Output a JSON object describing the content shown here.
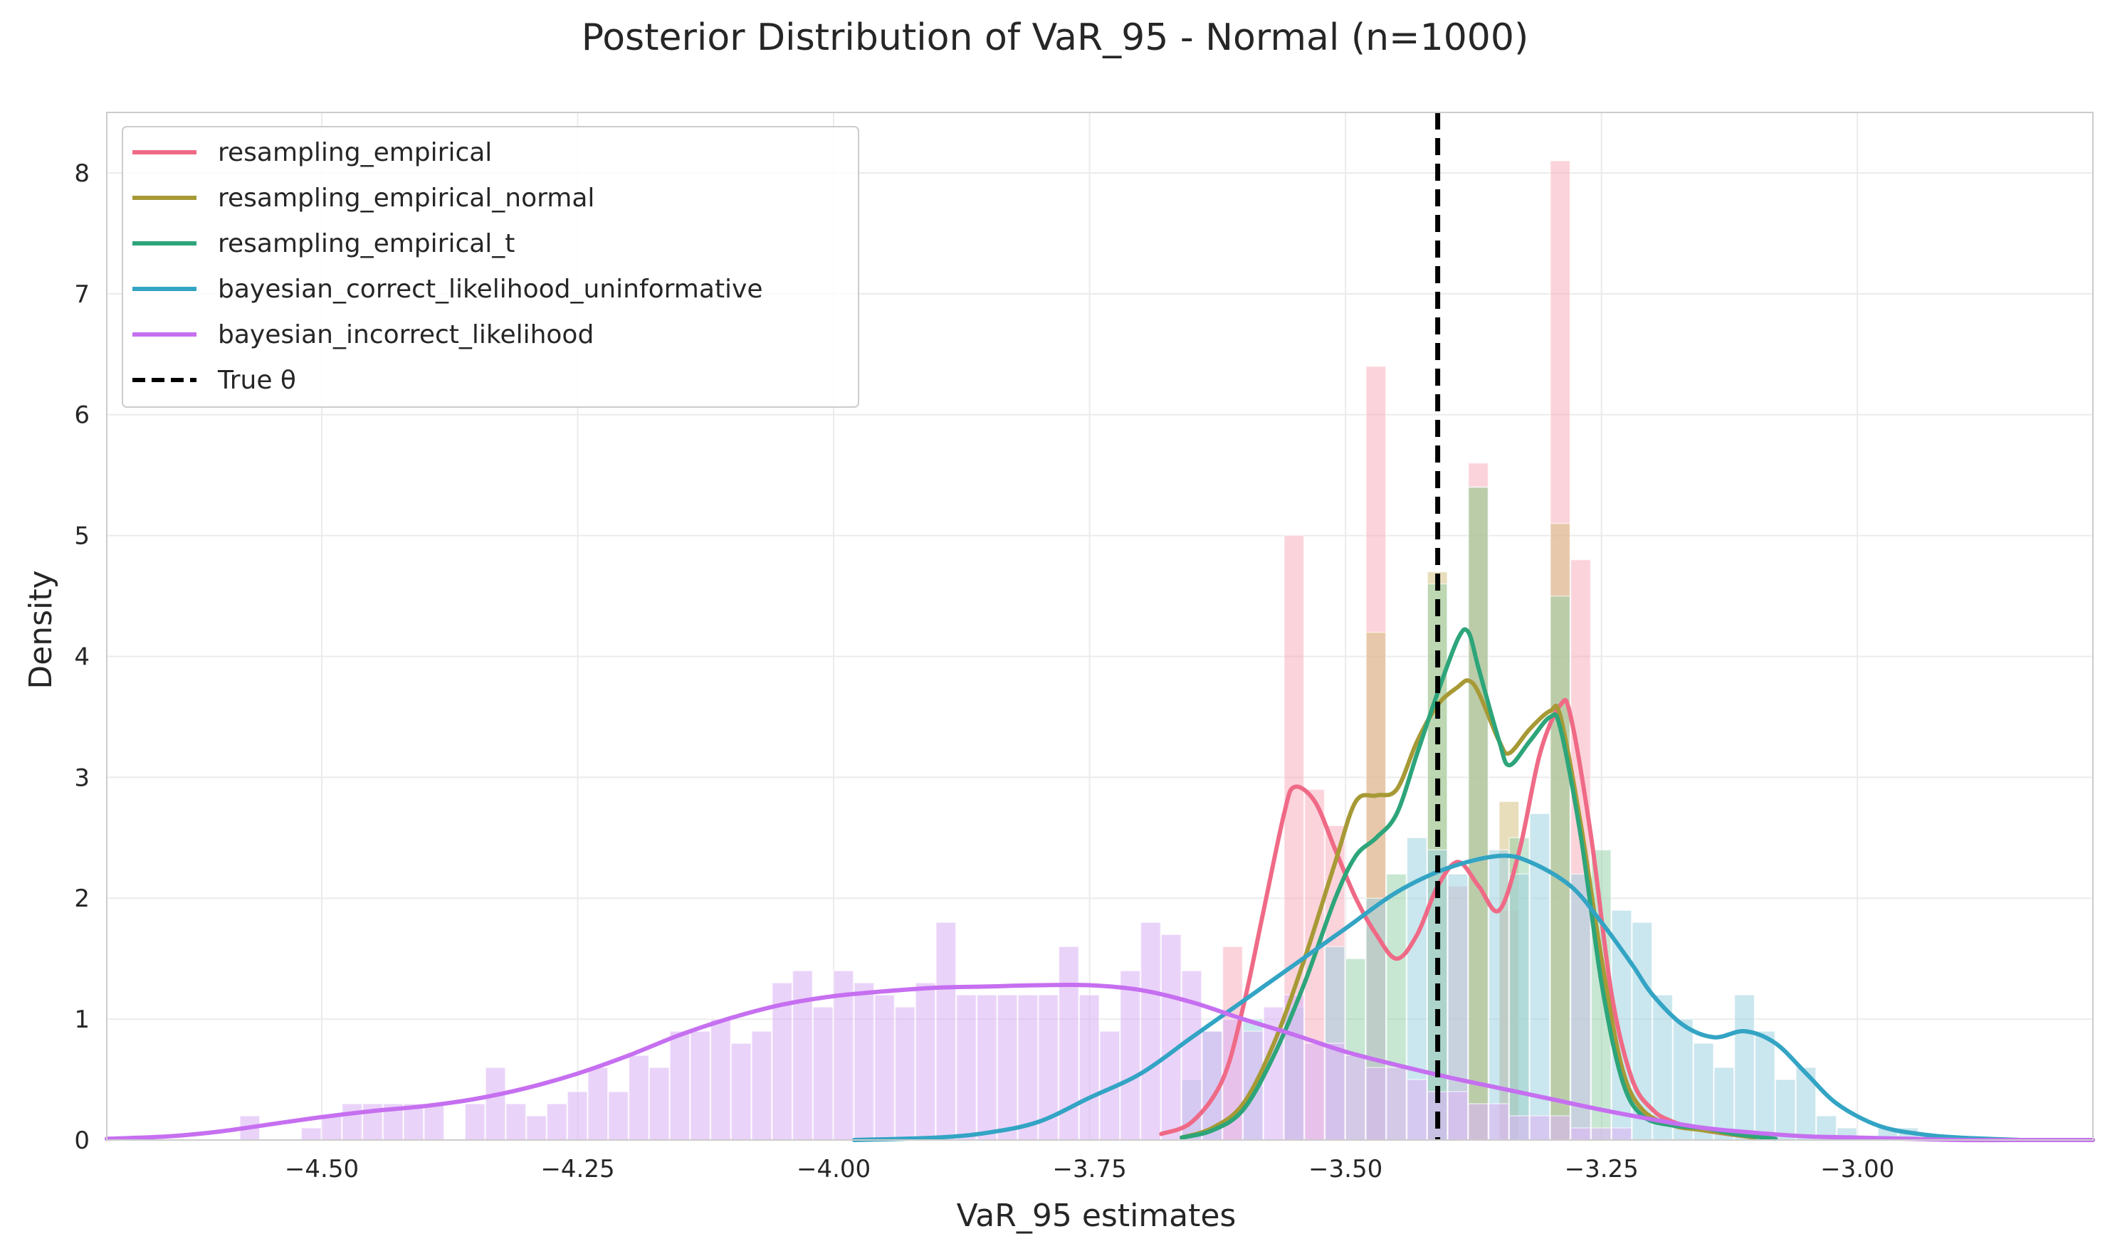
{
  "chart_data": {
    "type": "area",
    "title": "Posterior Distribution of VaR_95 - Normal (n=1000)",
    "xlabel": "VaR_95 estimates",
    "ylabel": "Density",
    "xlim": [
      -4.71,
      -2.77
    ],
    "ylim": [
      0,
      8.5
    ],
    "xticks": [
      -4.5,
      -4.25,
      -4.0,
      -3.75,
      -3.5,
      -3.25,
      -3.0
    ],
    "xtick_labels": [
      "−4.50",
      "−4.25",
      "−4.00",
      "−3.75",
      "−3.50",
      "−3.25",
      "−3.00"
    ],
    "yticks": [
      0,
      1,
      2,
      3,
      4,
      5,
      6,
      7,
      8
    ],
    "ytick_labels": [
      "0",
      "1",
      "2",
      "3",
      "4",
      "5",
      "6",
      "7",
      "8"
    ],
    "grid": true,
    "legend_position": "top-left",
    "true_theta": -3.41,
    "true_theta_label": "True θ",
    "histograms": [
      {
        "name": "resampling_empirical",
        "color": "#f7a8b8",
        "opacity": 0.5,
        "bars": [
          [
            -3.62,
            -3.6,
            1.6
          ],
          [
            -3.56,
            -3.54,
            5.0
          ],
          [
            -3.54,
            -3.52,
            2.9
          ],
          [
            -3.52,
            -3.5,
            2.6
          ],
          [
            -3.48,
            -3.46,
            6.4
          ],
          [
            -3.4,
            -3.38,
            2.1
          ],
          [
            -3.38,
            -3.36,
            5.6
          ],
          [
            -3.35,
            -3.33,
            1.9
          ],
          [
            -3.3,
            -3.28,
            8.1
          ],
          [
            -3.28,
            -3.26,
            4.8
          ]
        ]
      },
      {
        "name": "resampling_empirical_normal",
        "color": "#d4be7a",
        "opacity": 0.5,
        "bars": [
          [
            -3.48,
            -3.46,
            4.2
          ],
          [
            -3.42,
            -3.4,
            4.7
          ],
          [
            -3.38,
            -3.36,
            5.4
          ],
          [
            -3.35,
            -3.33,
            2.8
          ],
          [
            -3.3,
            -3.28,
            5.1
          ]
        ]
      },
      {
        "name": "resampling_empirical_t",
        "color": "#8fd0a8",
        "opacity": 0.5,
        "bars": [
          [
            -3.5,
            -3.48,
            1.5
          ],
          [
            -3.46,
            -3.44,
            2.2
          ],
          [
            -3.42,
            -3.4,
            4.6
          ],
          [
            -3.38,
            -3.36,
            5.4
          ],
          [
            -3.34,
            -3.32,
            2.5
          ],
          [
            -3.3,
            -3.28,
            4.5
          ],
          [
            -3.26,
            -3.24,
            2.4
          ]
        ]
      },
      {
        "name": "bayesian_correct_likelihood_uninformative",
        "color": "#9fd2e0",
        "opacity": 0.55,
        "bars": [
          [
            -3.66,
            -3.64,
            0.5
          ],
          [
            -3.64,
            -3.62,
            0.9
          ],
          [
            -3.6,
            -3.58,
            1.0
          ],
          [
            -3.56,
            -3.54,
            1.1
          ],
          [
            -3.52,
            -3.5,
            1.6
          ],
          [
            -3.48,
            -3.46,
            2.0
          ],
          [
            -3.44,
            -3.42,
            2.5
          ],
          [
            -3.42,
            -3.4,
            2.4
          ],
          [
            -3.4,
            -3.38,
            2.2
          ],
          [
            -3.36,
            -3.34,
            2.4
          ],
          [
            -3.34,
            -3.32,
            2.2
          ],
          [
            -3.32,
            -3.3,
            2.7
          ],
          [
            -3.28,
            -3.26,
            2.2
          ],
          [
            -3.24,
            -3.22,
            1.9
          ],
          [
            -3.22,
            -3.2,
            1.8
          ],
          [
            -3.2,
            -3.18,
            1.2
          ],
          [
            -3.18,
            -3.16,
            1.0
          ],
          [
            -3.16,
            -3.14,
            0.8
          ],
          [
            -3.14,
            -3.12,
            0.6
          ],
          [
            -3.12,
            -3.1,
            1.2
          ],
          [
            -3.1,
            -3.08,
            0.9
          ],
          [
            -3.08,
            -3.06,
            0.5
          ],
          [
            -3.06,
            -3.04,
            0.6
          ],
          [
            -3.04,
            -3.02,
            0.2
          ],
          [
            -3.02,
            -3.0,
            0.1
          ],
          [
            -2.98,
            -2.96,
            0.1
          ],
          [
            -2.96,
            -2.94,
            0.1
          ]
        ]
      },
      {
        "name": "bayesian_incorrect_likelihood",
        "color": "#dcb6f5",
        "opacity": 0.6,
        "bars": [
          [
            -4.58,
            -4.56,
            0.2
          ],
          [
            -4.52,
            -4.5,
            0.1
          ],
          [
            -4.5,
            -4.48,
            0.2
          ],
          [
            -4.48,
            -4.46,
            0.3
          ],
          [
            -4.46,
            -4.44,
            0.3
          ],
          [
            -4.44,
            -4.42,
            0.3
          ],
          [
            -4.42,
            -4.4,
            0.3
          ],
          [
            -4.4,
            -4.38,
            0.3
          ],
          [
            -4.36,
            -4.34,
            0.3
          ],
          [
            -4.34,
            -4.32,
            0.6
          ],
          [
            -4.32,
            -4.3,
            0.3
          ],
          [
            -4.3,
            -4.28,
            0.2
          ],
          [
            -4.28,
            -4.26,
            0.3
          ],
          [
            -4.26,
            -4.24,
            0.4
          ],
          [
            -4.24,
            -4.22,
            0.6
          ],
          [
            -4.22,
            -4.2,
            0.4
          ],
          [
            -4.2,
            -4.18,
            0.7
          ],
          [
            -4.18,
            -4.16,
            0.6
          ],
          [
            -4.16,
            -4.14,
            0.9
          ],
          [
            -4.14,
            -4.12,
            0.9
          ],
          [
            -4.12,
            -4.1,
            1.0
          ],
          [
            -4.1,
            -4.08,
            0.8
          ],
          [
            -4.08,
            -4.06,
            0.9
          ],
          [
            -4.06,
            -4.04,
            1.3
          ],
          [
            -4.04,
            -4.02,
            1.4
          ],
          [
            -4.02,
            -4.0,
            1.1
          ],
          [
            -4.0,
            -3.98,
            1.4
          ],
          [
            -3.98,
            -3.96,
            1.3
          ],
          [
            -3.96,
            -3.94,
            1.2
          ],
          [
            -3.94,
            -3.92,
            1.1
          ],
          [
            -3.92,
            -3.9,
            1.3
          ],
          [
            -3.9,
            -3.88,
            1.8
          ],
          [
            -3.88,
            -3.86,
            1.2
          ],
          [
            -3.86,
            -3.84,
            1.2
          ],
          [
            -3.84,
            -3.82,
            1.2
          ],
          [
            -3.82,
            -3.8,
            1.2
          ],
          [
            -3.8,
            -3.78,
            1.2
          ],
          [
            -3.78,
            -3.76,
            1.6
          ],
          [
            -3.76,
            -3.74,
            1.2
          ],
          [
            -3.74,
            -3.72,
            0.9
          ],
          [
            -3.72,
            -3.7,
            1.4
          ],
          [
            -3.7,
            -3.68,
            1.8
          ],
          [
            -3.68,
            -3.66,
            1.7
          ],
          [
            -3.66,
            -3.64,
            1.4
          ],
          [
            -3.64,
            -3.62,
            0.9
          ],
          [
            -3.62,
            -3.6,
            1.0
          ],
          [
            -3.6,
            -3.58,
            0.9
          ],
          [
            -3.58,
            -3.56,
            1.1
          ],
          [
            -3.56,
            -3.54,
            1.2
          ],
          [
            -3.54,
            -3.52,
            0.8
          ],
          [
            -3.52,
            -3.5,
            0.8
          ],
          [
            -3.5,
            -3.48,
            0.7
          ],
          [
            -3.48,
            -3.46,
            0.6
          ],
          [
            -3.46,
            -3.44,
            0.6
          ],
          [
            -3.44,
            -3.42,
            0.5
          ],
          [
            -3.42,
            -3.4,
            0.4
          ],
          [
            -3.4,
            -3.38,
            0.4
          ],
          [
            -3.38,
            -3.36,
            0.3
          ],
          [
            -3.36,
            -3.34,
            0.3
          ],
          [
            -3.34,
            -3.32,
            0.2
          ],
          [
            -3.32,
            -3.3,
            0.2
          ],
          [
            -3.3,
            -3.28,
            0.2
          ],
          [
            -3.28,
            -3.26,
            0.1
          ],
          [
            -3.26,
            -3.24,
            0.1
          ],
          [
            -3.24,
            -3.22,
            0.1
          ]
        ]
      }
    ],
    "series": [
      {
        "name": "resampling_empirical",
        "color": "#ef6a86",
        "x": [
          -3.68,
          -3.65,
          -3.62,
          -3.6,
          -3.58,
          -3.56,
          -3.55,
          -3.53,
          -3.51,
          -3.49,
          -3.47,
          -3.45,
          -3.43,
          -3.41,
          -3.39,
          -3.37,
          -3.35,
          -3.33,
          -3.31,
          -3.29,
          -3.28,
          -3.26,
          -3.24,
          -3.22,
          -3.2,
          -3.18,
          -3.15,
          -3.1
        ],
        "y": [
          0.05,
          0.15,
          0.5,
          1.1,
          1.9,
          2.7,
          2.92,
          2.8,
          2.4,
          2.0,
          1.7,
          1.5,
          1.7,
          2.1,
          2.3,
          2.1,
          1.9,
          2.4,
          3.2,
          3.6,
          3.5,
          2.5,
          1.2,
          0.5,
          0.25,
          0.15,
          0.08,
          0.02
        ]
      },
      {
        "name": "resampling_empirical_normal",
        "color": "#a79a36",
        "x": [
          -3.66,
          -3.63,
          -3.6,
          -3.57,
          -3.54,
          -3.51,
          -3.49,
          -3.47,
          -3.45,
          -3.43,
          -3.41,
          -3.39,
          -3.38,
          -3.37,
          -3.35,
          -3.34,
          -3.32,
          -3.3,
          -3.29,
          -3.27,
          -3.25,
          -3.23,
          -3.21,
          -3.18,
          -3.15,
          -3.1
        ],
        "y": [
          0.02,
          0.1,
          0.3,
          0.8,
          1.5,
          2.3,
          2.8,
          2.85,
          2.9,
          3.3,
          3.6,
          3.75,
          3.8,
          3.7,
          3.3,
          3.2,
          3.4,
          3.55,
          3.5,
          2.6,
          1.5,
          0.6,
          0.25,
          0.12,
          0.08,
          0.02
        ]
      },
      {
        "name": "resampling_empirical_t",
        "color": "#2da57a",
        "x": [
          -3.66,
          -3.63,
          -3.6,
          -3.57,
          -3.54,
          -3.51,
          -3.49,
          -3.47,
          -3.45,
          -3.43,
          -3.41,
          -3.39,
          -3.38,
          -3.37,
          -3.35,
          -3.34,
          -3.32,
          -3.3,
          -3.29,
          -3.27,
          -3.25,
          -3.23,
          -3.21,
          -3.18,
          -3.15,
          -3.12,
          -3.08
        ],
        "y": [
          0.02,
          0.08,
          0.25,
          0.7,
          1.3,
          2.0,
          2.35,
          2.5,
          2.7,
          3.2,
          3.7,
          4.15,
          4.2,
          3.9,
          3.3,
          3.1,
          3.3,
          3.5,
          3.4,
          2.5,
          1.3,
          0.5,
          0.2,
          0.12,
          0.1,
          0.05,
          0.01
        ]
      },
      {
        "name": "bayesian_correct_likelihood_uninformative",
        "color": "#33a4c4",
        "x": [
          -3.98,
          -3.9,
          -3.85,
          -3.8,
          -3.75,
          -3.7,
          -3.65,
          -3.6,
          -3.55,
          -3.5,
          -3.45,
          -3.4,
          -3.35,
          -3.32,
          -3.28,
          -3.25,
          -3.22,
          -3.2,
          -3.17,
          -3.14,
          -3.11,
          -3.08,
          -3.05,
          -3.02,
          -2.98,
          -2.94,
          -2.9,
          -2.84
        ],
        "y": [
          0.0,
          0.02,
          0.06,
          0.15,
          0.35,
          0.55,
          0.85,
          1.15,
          1.45,
          1.75,
          2.05,
          2.25,
          2.35,
          2.3,
          2.1,
          1.8,
          1.45,
          1.2,
          0.95,
          0.85,
          0.9,
          0.8,
          0.55,
          0.3,
          0.12,
          0.05,
          0.02,
          0.0
        ]
      },
      {
        "name": "bayesian_incorrect_likelihood",
        "color": "#c66ff0",
        "x": [
          -4.71,
          -4.65,
          -4.6,
          -4.55,
          -4.5,
          -4.45,
          -4.4,
          -4.35,
          -4.3,
          -4.25,
          -4.2,
          -4.15,
          -4.1,
          -4.05,
          -4.0,
          -3.95,
          -3.9,
          -3.85,
          -3.8,
          -3.75,
          -3.7,
          -3.65,
          -3.6,
          -3.55,
          -3.5,
          -3.45,
          -3.4,
          -3.35,
          -3.3,
          -3.25,
          -3.2,
          -3.15,
          -3.1,
          -3.05,
          -3.0,
          -2.95,
          -2.9,
          -2.85,
          -2.8,
          -2.77
        ],
        "y": [
          0.01,
          0.03,
          0.07,
          0.13,
          0.19,
          0.24,
          0.28,
          0.34,
          0.43,
          0.55,
          0.7,
          0.87,
          1.01,
          1.12,
          1.19,
          1.23,
          1.26,
          1.27,
          1.28,
          1.28,
          1.24,
          1.14,
          1.0,
          0.87,
          0.73,
          0.62,
          0.52,
          0.43,
          0.34,
          0.25,
          0.17,
          0.1,
          0.06,
          0.03,
          0.02,
          0.01,
          0.0,
          0.0,
          0.0,
          0.0
        ]
      }
    ]
  }
}
